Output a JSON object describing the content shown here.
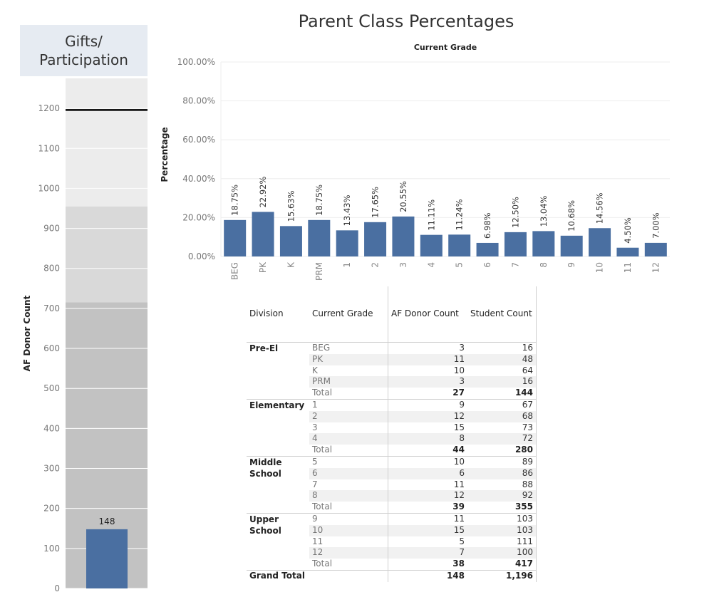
{
  "left_panel": {
    "title_line1": "Gifts/",
    "title_line2": "Participation",
    "y_label": "AF Donor Count",
    "ticks": [
      0,
      100,
      200,
      300,
      400,
      500,
      600,
      700,
      800,
      900,
      1000,
      1100,
      1200
    ],
    "ylim": [
      0,
      1275
    ],
    "bands": [
      {
        "from": 0,
        "to": 715,
        "color": "#c2c2c2"
      },
      {
        "from": 715,
        "to": 955,
        "color": "#d9d9d9"
      },
      {
        "from": 955,
        "to": 1275,
        "color": "#ececec"
      }
    ],
    "target": 1196,
    "bar_value": 148,
    "bar_label": "148",
    "bar_color": "#4a6fa1"
  },
  "chart_data": {
    "type": "bar",
    "title": "Parent Class Percentages",
    "subtitle": "Current Grade",
    "ylabel": "Percentage",
    "xlabel": "",
    "ylim": [
      0,
      100
    ],
    "yticks": [
      "0.00%",
      "20.00%",
      "40.00%",
      "60.00%",
      "80.00%",
      "100.00%"
    ],
    "categories": [
      "BEG",
      "PK",
      "K",
      "PRM",
      "1",
      "2",
      "3",
      "4",
      "5",
      "6",
      "7",
      "8",
      "9",
      "10",
      "11",
      "12"
    ],
    "values": [
      18.75,
      22.92,
      15.63,
      18.75,
      13.43,
      17.65,
      20.55,
      11.11,
      11.24,
      6.98,
      12.5,
      13.04,
      10.68,
      14.56,
      4.5,
      7.0
    ],
    "labels": [
      "18.75%",
      "22.92%",
      "15.63%",
      "18.75%",
      "13.43%",
      "17.65%",
      "20.55%",
      "11.11%",
      "11.24%",
      "6.98%",
      "12.50%",
      "13.04%",
      "10.68%",
      "14.56%",
      "4.50%",
      "7.00%"
    ],
    "bar_color": "#4a6fa1"
  },
  "table": {
    "headers": {
      "division": "Division",
      "grade": "Current Grade",
      "donor": "AF Donor Count",
      "student": "Student Count"
    },
    "groups": [
      {
        "division": "Pre-El",
        "rows": [
          [
            "BEG",
            "3",
            "16"
          ],
          [
            "PK",
            "11",
            "48"
          ],
          [
            "K",
            "10",
            "64"
          ],
          [
            "PRM",
            "3",
            "16"
          ]
        ],
        "total": [
          "Total",
          "27",
          "144"
        ]
      },
      {
        "division": "Elementary",
        "rows": [
          [
            "1",
            "9",
            "67"
          ],
          [
            "2",
            "12",
            "68"
          ],
          [
            "3",
            "15",
            "73"
          ],
          [
            "4",
            "8",
            "72"
          ]
        ],
        "total": [
          "Total",
          "44",
          "280"
        ]
      },
      {
        "division": "Middle School",
        "rows": [
          [
            "5",
            "10",
            "89"
          ],
          [
            "6",
            "6",
            "86"
          ],
          [
            "7",
            "11",
            "88"
          ],
          [
            "8",
            "12",
            "92"
          ]
        ],
        "total": [
          "Total",
          "39",
          "355"
        ]
      },
      {
        "division": "Upper School",
        "rows": [
          [
            "9",
            "11",
            "103"
          ],
          [
            "10",
            "15",
            "103"
          ],
          [
            "11",
            "5",
            "111"
          ],
          [
            "12",
            "7",
            "100"
          ]
        ],
        "total": [
          "Total",
          "38",
          "417"
        ]
      }
    ],
    "grand_total": {
      "label": "Grand Total",
      "donor": "148",
      "student": "1,196"
    }
  }
}
